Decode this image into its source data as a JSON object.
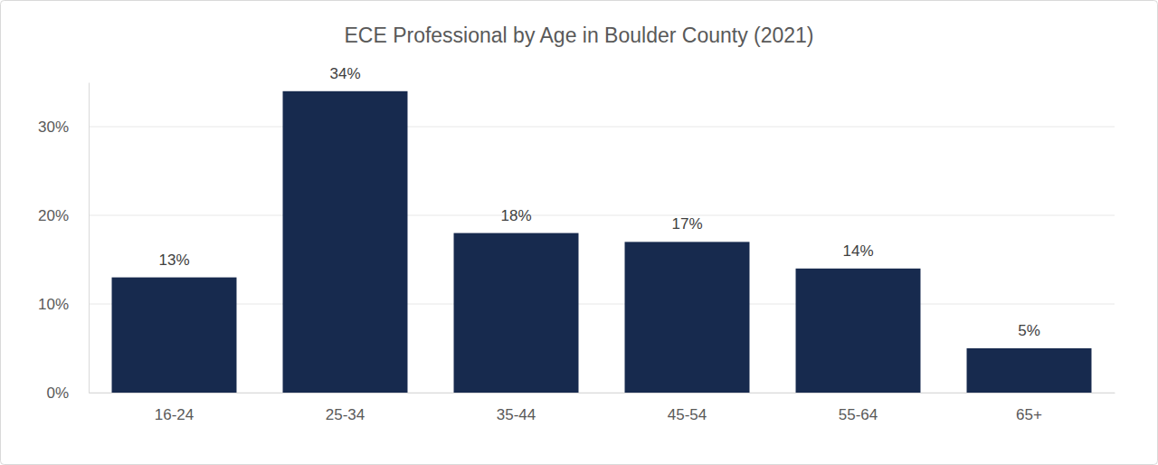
{
  "chart_data": {
    "type": "bar",
    "title": "ECE Professional by Age in Boulder County (2021)",
    "categories": [
      "16-24",
      "25-34",
      "35-44",
      "45-54",
      "55-64",
      "65+"
    ],
    "values": [
      13,
      34,
      18,
      17,
      14,
      5
    ],
    "value_labels": [
      "13%",
      "34%",
      "18%",
      "17%",
      "14%",
      "5%"
    ],
    "color": "#172a4e",
    "ylim": [
      0,
      35
    ],
    "yticks": [
      {
        "value": 0,
        "label": "0%"
      },
      {
        "value": 10,
        "label": "10%"
      },
      {
        "value": 20,
        "label": "20%"
      },
      {
        "value": 30,
        "label": "30%"
      }
    ],
    "grid": true,
    "data_labels": true
  }
}
